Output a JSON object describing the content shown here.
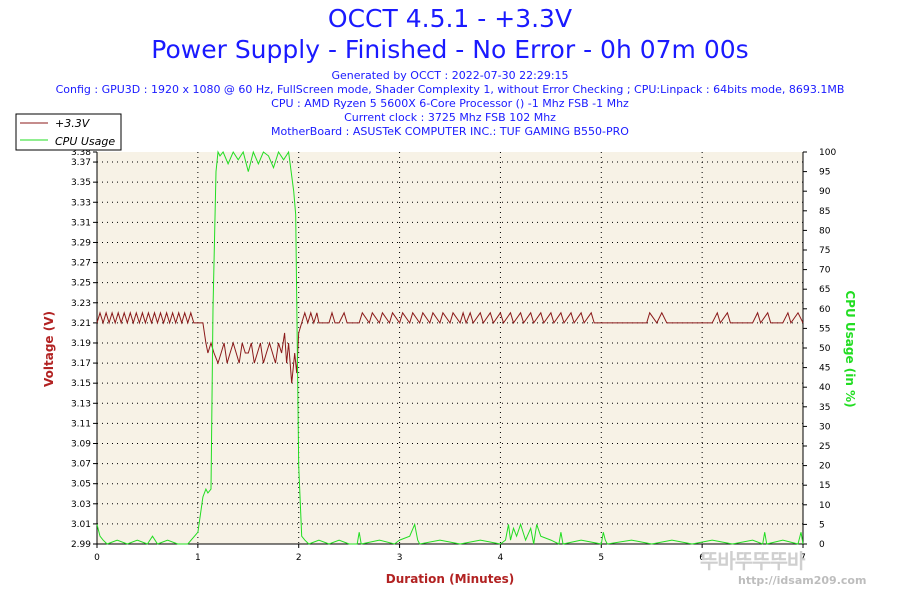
{
  "header": {
    "title": "OCCT 4.5.1 - +3.3V",
    "subtitle": "Power Supply - Finished - No Error - 0h 07m 00s",
    "info_lines": [
      "Generated by OCCT : 2022-07-30 22:29:15",
      "Config : GPU3D : 1920 x 1080 @ 60 Hz, FullScreen mode, Shader Complexity 1, without Error Checking ; CPU:Linpack : 64bits mode, 8693.1MB",
      "CPU : AMD Ryzen 5 5600X 6-Core Processor () -1 Mhz FSB -1 Mhz",
      "Current clock : 3725 Mhz FSB 102 Mhz",
      "MotherBoard : ASUSTeK COMPUTER INC.: TUF GAMING B550-PRO"
    ]
  },
  "watermark": {
    "logo_text": "뚜바뚜뚜뚜바",
    "url": "http://idsam209.com"
  },
  "colors": {
    "voltage": "#8b1a1a",
    "cpu": "#22dd22",
    "plot_bg": "#f7f2e6",
    "grid": "#000000",
    "title": "#1a1aff"
  },
  "chart_data": {
    "type": "line",
    "xlabel": "Duration (Minutes)",
    "ylabel_left": "Voltage (V)",
    "ylabel_right": "CPU Usage (in %)",
    "xlim": [
      0,
      7
    ],
    "ylim_left": [
      2.99,
      3.38
    ],
    "ylim_right": [
      0,
      100
    ],
    "x_ticks": [
      "0",
      "1",
      "2",
      "3",
      "4",
      "5",
      "6",
      "7"
    ],
    "y_left_ticks": [
      "2.99",
      "3.01",
      "3.03",
      "3.05",
      "3.07",
      "3.09",
      "3.11",
      "3.13",
      "3.15",
      "3.17",
      "3.19",
      "3.21",
      "3.23",
      "3.25",
      "3.27",
      "3.29",
      "3.31",
      "3.33",
      "3.35",
      "3.37",
      "3.38"
    ],
    "y_right_ticks": [
      "0",
      "5",
      "10",
      "15",
      "20",
      "25",
      "30",
      "35",
      "40",
      "45",
      "50",
      "55",
      "60",
      "65",
      "70",
      "75",
      "80",
      "85",
      "90",
      "95",
      "100"
    ],
    "grid": true,
    "legend_position": "top-left",
    "series": [
      {
        "name": "+3.3V",
        "axis": "left",
        "x": [
          0,
          0.03,
          0.06,
          0.09,
          0.12,
          0.15,
          0.18,
          0.21,
          0.24,
          0.27,
          0.3,
          0.33,
          0.36,
          0.39,
          0.42,
          0.45,
          0.48,
          0.51,
          0.54,
          0.57,
          0.6,
          0.63,
          0.66,
          0.69,
          0.72,
          0.75,
          0.78,
          0.81,
          0.84,
          0.87,
          0.9,
          0.93,
          0.96,
          1.0,
          1.05,
          1.08,
          1.1,
          1.13,
          1.16,
          1.2,
          1.23,
          1.26,
          1.29,
          1.32,
          1.35,
          1.38,
          1.41,
          1.44,
          1.47,
          1.5,
          1.53,
          1.56,
          1.59,
          1.62,
          1.65,
          1.68,
          1.71,
          1.74,
          1.77,
          1.8,
          1.83,
          1.86,
          1.88,
          1.9,
          1.93,
          1.96,
          1.98,
          2.0,
          2.03,
          2.06,
          2.09,
          2.12,
          2.15,
          2.18,
          2.2,
          2.3,
          2.33,
          2.36,
          2.4,
          2.45,
          2.48,
          2.52,
          2.6,
          2.63,
          2.7,
          2.73,
          2.8,
          2.83,
          2.9,
          2.93,
          3.0,
          3.03,
          3.1,
          3.13,
          3.2,
          3.23,
          3.3,
          3.33,
          3.4,
          3.43,
          3.5,
          3.53,
          3.6,
          3.63,
          3.66,
          3.7,
          3.73,
          3.8,
          3.83,
          3.9,
          3.93,
          4.0,
          4.03,
          4.1,
          4.13,
          4.2,
          4.23,
          4.3,
          4.33,
          4.4,
          4.43,
          4.5,
          4.53,
          4.6,
          4.63,
          4.7,
          4.73,
          4.8,
          4.83,
          4.9,
          4.93,
          5.0,
          5.03,
          5.1,
          5.2,
          5.3,
          5.4,
          5.45,
          5.48,
          5.55,
          5.6,
          5.65,
          5.7,
          5.8,
          5.9,
          6.0,
          6.1,
          6.15,
          6.18,
          6.25,
          6.28,
          6.4,
          6.5,
          6.55,
          6.58,
          6.65,
          6.68,
          6.8,
          6.85,
          6.88,
          6.95,
          7.0
        ],
        "values": [
          3.21,
          3.22,
          3.21,
          3.22,
          3.21,
          3.22,
          3.21,
          3.22,
          3.21,
          3.22,
          3.21,
          3.22,
          3.21,
          3.22,
          3.21,
          3.22,
          3.21,
          3.22,
          3.21,
          3.22,
          3.21,
          3.22,
          3.21,
          3.22,
          3.21,
          3.22,
          3.21,
          3.22,
          3.21,
          3.22,
          3.21,
          3.22,
          3.21,
          3.21,
          3.21,
          3.19,
          3.18,
          3.19,
          3.18,
          3.17,
          3.18,
          3.19,
          3.17,
          3.18,
          3.19,
          3.18,
          3.17,
          3.19,
          3.18,
          3.18,
          3.19,
          3.17,
          3.18,
          3.19,
          3.17,
          3.18,
          3.19,
          3.18,
          3.17,
          3.19,
          3.18,
          3.2,
          3.17,
          3.19,
          3.15,
          3.18,
          3.16,
          3.2,
          3.21,
          3.22,
          3.21,
          3.22,
          3.21,
          3.22,
          3.21,
          3.21,
          3.22,
          3.21,
          3.21,
          3.22,
          3.21,
          3.21,
          3.21,
          3.22,
          3.21,
          3.22,
          3.21,
          3.22,
          3.21,
          3.22,
          3.21,
          3.22,
          3.21,
          3.22,
          3.21,
          3.22,
          3.21,
          3.22,
          3.21,
          3.22,
          3.21,
          3.22,
          3.21,
          3.22,
          3.21,
          3.22,
          3.21,
          3.22,
          3.21,
          3.22,
          3.21,
          3.22,
          3.21,
          3.22,
          3.21,
          3.22,
          3.21,
          3.22,
          3.21,
          3.22,
          3.21,
          3.22,
          3.21,
          3.22,
          3.21,
          3.22,
          3.21,
          3.22,
          3.21,
          3.22,
          3.21,
          3.21,
          3.21,
          3.21,
          3.21,
          3.21,
          3.21,
          3.21,
          3.22,
          3.21,
          3.22,
          3.21,
          3.21,
          3.21,
          3.21,
          3.21,
          3.21,
          3.22,
          3.21,
          3.22,
          3.21,
          3.21,
          3.21,
          3.22,
          3.21,
          3.22,
          3.21,
          3.21,
          3.22,
          3.21,
          3.22,
          3.21
        ]
      },
      {
        "name": "CPU Usage",
        "axis": "right",
        "x": [
          0,
          0.03,
          0.06,
          0.1,
          0.2,
          0.3,
          0.4,
          0.5,
          0.55,
          0.6,
          0.7,
          0.8,
          0.9,
          1.0,
          1.05,
          1.08,
          1.1,
          1.13,
          1.15,
          1.18,
          1.2,
          1.22,
          1.25,
          1.3,
          1.35,
          1.4,
          1.45,
          1.5,
          1.55,
          1.6,
          1.65,
          1.7,
          1.75,
          1.8,
          1.85,
          1.9,
          1.95,
          1.97,
          2.0,
          2.03,
          2.06,
          2.1,
          2.2,
          2.3,
          2.4,
          2.5,
          2.58,
          2.6,
          2.62,
          2.8,
          2.95,
          3.0,
          3.1,
          3.15,
          3.18,
          3.2,
          3.4,
          3.6,
          3.8,
          4.0,
          4.05,
          4.08,
          4.1,
          4.13,
          4.16,
          4.2,
          4.25,
          4.3,
          4.33,
          4.36,
          4.4,
          4.5,
          4.58,
          4.6,
          4.62,
          4.8,
          5.0,
          5.02,
          5.04,
          5.06,
          5.3,
          5.5,
          5.7,
          5.9,
          6.1,
          6.3,
          6.5,
          6.6,
          6.62,
          6.64,
          6.8,
          6.95,
          6.98,
          7.0
        ],
        "values": [
          5,
          2,
          1,
          0,
          1,
          0,
          1,
          0,
          2,
          0,
          1,
          0,
          0,
          3,
          12,
          14,
          13,
          14,
          60,
          95,
          100,
          99,
          100,
          97,
          100,
          98,
          100,
          95,
          100,
          97,
          100,
          99,
          96,
          100,
          98,
          100,
          90,
          84,
          20,
          2,
          1,
          0,
          1,
          0,
          1,
          0,
          0,
          3,
          0,
          1,
          0,
          1,
          2,
          5,
          1,
          0,
          1,
          0,
          1,
          0,
          1,
          5,
          1,
          4,
          2,
          5,
          1,
          4,
          0,
          5,
          2,
          1,
          0,
          3,
          0,
          1,
          0,
          3,
          1,
          0,
          1,
          0,
          1,
          0,
          1,
          0,
          1,
          0,
          3,
          0,
          1,
          0,
          3,
          0
        ]
      }
    ]
  }
}
